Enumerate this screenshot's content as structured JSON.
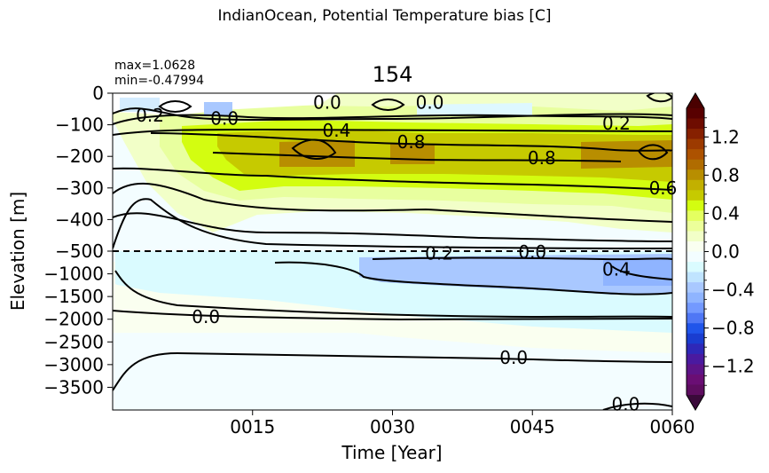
{
  "figure": {
    "suptitle": "IndianOcean, Potential Temperature bias [C]",
    "panel_title": "154",
    "stats": {
      "max": "max=1.0628",
      "min": "min=-0.47994"
    }
  },
  "chart_data": {
    "type": "heatmap",
    "title": "154",
    "xlabel": "Time [Year]",
    "ylabel": "Elevation [m]",
    "x_ticks": [
      "0015",
      "0030",
      "0045",
      "0060"
    ],
    "x_tick_values": [
      15,
      30,
      45,
      60
    ],
    "xlim": [
      0,
      60
    ],
    "y_ticks_upper": [
      "0",
      "−100",
      "−200",
      "−300",
      "−400",
      "−500"
    ],
    "y_ticks_lower": [
      "−1000",
      "−1500",
      "−2000",
      "−2500",
      "−3000",
      "−3500"
    ],
    "upper_ylim": [
      -500,
      0
    ],
    "lower_ylim": [
      -4000,
      -500
    ],
    "split_depth": -500,
    "contour_labels": [
      {
        "text": "0.0",
        "year": 23,
        "depth": -30
      },
      {
        "text": "0.0",
        "year": 34,
        "depth": -30
      },
      {
        "text": "0.2",
        "year": 4,
        "depth": -70
      },
      {
        "text": "0.0",
        "year": 12,
        "depth": -80
      },
      {
        "text": "0.2",
        "year": 54,
        "depth": -95
      },
      {
        "text": "0.4",
        "year": 24,
        "depth": -118
      },
      {
        "text": "0.8",
        "year": 32,
        "depth": -155
      },
      {
        "text": "0.8",
        "year": 46,
        "depth": -205
      },
      {
        "text": "0.6",
        "year": 59,
        "depth": -300
      },
      {
        "text": "0.0",
        "year": 45,
        "depth": -520
      },
      {
        "text": "0.2",
        "year": 35,
        "depth": -550
      },
      {
        "text": "0.4",
        "year": 54,
        "depth": -900
      },
      {
        "text": "0.0",
        "year": 10,
        "depth": -1950
      },
      {
        "text": "0.0",
        "year": 43,
        "depth": -2850
      },
      {
        "text": "0.0",
        "year": 55,
        "depth": -3870
      }
    ],
    "colorbar": {
      "ticks": [
        "1.2",
        "0.8",
        "0.4",
        "0.0",
        "−0.4",
        "−0.8",
        "−1.2"
      ],
      "tick_values": [
        1.2,
        0.8,
        0.4,
        0.0,
        -0.4,
        -0.8,
        -1.2
      ],
      "range": [
        -1.5,
        1.5
      ],
      "extend": "both"
    }
  },
  "colors": {
    "ocean_pale": "#f3fdff",
    "neutral": "#fafff0",
    "cyan_light": "#dafbff",
    "blue_light": "#a9c8ff",
    "lime_pale": "#f2ffc8",
    "lime_light": "#e8ff9f",
    "lime": "#d3fd10",
    "olive": "#c6ca00",
    "ochre": "#b88e00"
  }
}
